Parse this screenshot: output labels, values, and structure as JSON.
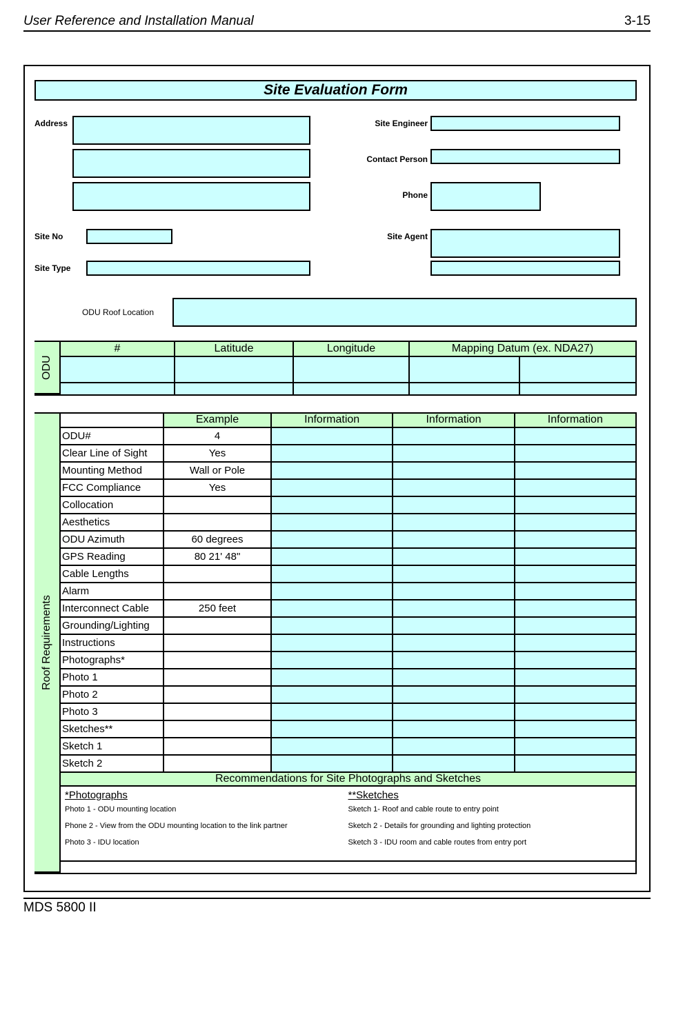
{
  "header": {
    "title": "User Reference and Installation Manual",
    "page_number": "3-15"
  },
  "footer": {
    "text": "MDS 5800 II"
  },
  "form": {
    "title": "Site Evaluation Form",
    "labels": {
      "address": "Address",
      "site_engineer": "Site Engineer",
      "contact_person": "Contact Person",
      "phone": "Phone",
      "site_no": "Site No",
      "site_agent": "Site Agent",
      "site_type": "Site Type",
      "odu_roof": "ODU Roof Location"
    }
  },
  "odu_table": {
    "vlabel": "ODU",
    "headers": {
      "num": "#",
      "lat": "Latitude",
      "lon": "Longitude",
      "map": "Mapping Datum (ex. NDA27)"
    }
  },
  "roof": {
    "vlabel": "Roof Requirements",
    "headers": {
      "example": "Example",
      "info1": "Information",
      "info2": "Information",
      "info3": "Information"
    },
    "rows": [
      {
        "label": "ODU#",
        "example": "4"
      },
      {
        "label": "Clear Line of Sight",
        "example": "Yes"
      },
      {
        "label": "Mounting Method",
        "example": "Wall or Pole"
      },
      {
        "label": "FCC Compliance",
        "example": "Yes"
      },
      {
        "label": "Collocation",
        "example": ""
      },
      {
        "label": "Aesthetics",
        "example": ""
      },
      {
        "label": "ODU Azimuth",
        "example": "60 degrees"
      },
      {
        "label": "GPS Reading",
        "example": "80 21' 48\""
      },
      {
        "label": "Cable Lengths",
        "example": ""
      },
      {
        "label": "Alarm",
        "example": ""
      },
      {
        "label": "Interconnect Cable",
        "example": "250 feet"
      },
      {
        "label": "Grounding/Lighting",
        "example": ""
      },
      {
        "label": "Instructions",
        "example": ""
      },
      {
        "label": "Photographs*",
        "example": ""
      },
      {
        "label": "Photo 1",
        "example": ""
      },
      {
        "label": "Photo 2",
        "example": ""
      },
      {
        "label": "Photo 3",
        "example": ""
      },
      {
        "label": "Sketches**",
        "example": ""
      },
      {
        "label": "Sketch 1",
        "example": ""
      },
      {
        "label": "Sketch 2",
        "example": ""
      }
    ],
    "rec_title": "Recommendations for Site Photographs and Sketches",
    "rec": {
      "photos_header": "*Photographs",
      "photos": [
        "Photo 1 - ODU mounting location",
        "Phone 2 - View from the ODU mounting location to the link partner",
        "Photo 3 - IDU location"
      ],
      "sketches_header": "**Sketches",
      "sketches": [
        "Sketch 1- Roof and cable route to entry point",
        "Sketch 2 - Details for grounding and lighting protection",
        "Sketch 3 - IDU room and cable routes from entry port"
      ]
    }
  },
  "colors": {
    "cyan": "#ccffff",
    "green": "#ccffcc",
    "border": "#000000",
    "text": "#000000",
    "bg": "#ffffff"
  }
}
